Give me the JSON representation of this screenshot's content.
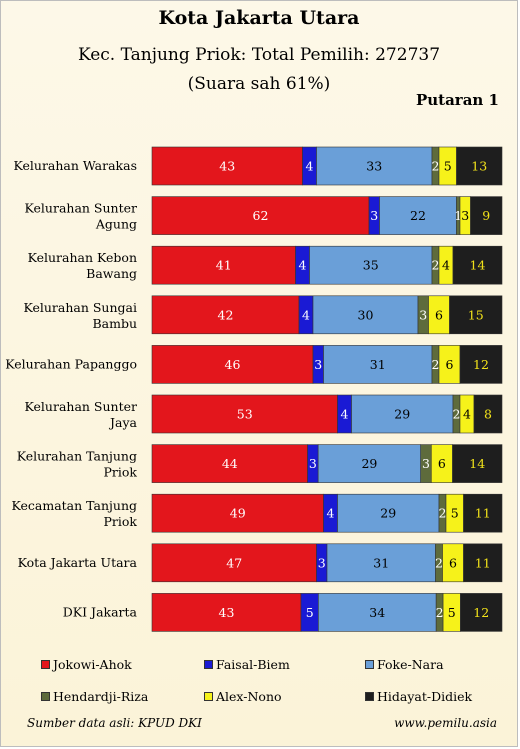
{
  "header": {
    "title": "Kota Jakarta Utara",
    "subtitle": "Kec. Tanjung Priok: Total Pemilih: 272737",
    "subtitle2": "(Suara sah 61%)",
    "round": "Putaran 1"
  },
  "footer": {
    "source": "Sumber data asli: KPUD DKI",
    "site": "www.pemilu.asia"
  },
  "chart_data": {
    "type": "bar",
    "orientation": "horizontal",
    "stacked": "percent",
    "categories": [
      "Kelurahan Warakas",
      "Kelurahan Sunter Agung",
      "Kelurahan Kebon Bawang",
      "Kelurahan Sungai Bambu",
      "Kelurahan Papanggo",
      "Kelurahan Sunter Jaya",
      "Kelurahan Tanjung Priok",
      "Kecamatan Tanjung Priok",
      "Kota Jakarta Utara",
      "DKI Jakarta"
    ],
    "series": [
      {
        "name": "Jokowi-Ahok",
        "color": "#e3161c",
        "label_color": "#ffffff",
        "values": [
          43,
          62,
          41,
          42,
          46,
          53,
          44,
          49,
          47,
          43
        ]
      },
      {
        "name": "Faisal-Biem",
        "color": "#1a1ad4",
        "label_color": "#ffffff",
        "values": [
          4,
          3,
          4,
          4,
          3,
          4,
          3,
          4,
          3,
          5
        ]
      },
      {
        "name": "Foke-Nara",
        "color": "#6a9fd8",
        "label_color": "#000000",
        "values": [
          33,
          22,
          35,
          30,
          31,
          29,
          29,
          29,
          31,
          34
        ]
      },
      {
        "name": "Hendardji-Riza",
        "color": "#5e6b3c",
        "label_color": "#ffffff",
        "values": [
          2,
          1,
          2,
          3,
          2,
          2,
          3,
          2,
          2,
          2
        ]
      },
      {
        "name": "Alex-Nono",
        "color": "#f6f21a",
        "label_color": "#000000",
        "values": [
          5,
          3,
          4,
          6,
          6,
          4,
          6,
          5,
          6,
          5
        ]
      },
      {
        "name": "Hidayat-Didiek",
        "color": "#1e1e1e",
        "label_color": "#f2e21a",
        "values": [
          13,
          9,
          14,
          15,
          12,
          8,
          14,
          11,
          11,
          12
        ]
      }
    ],
    "legend_position": "bottom",
    "grid": false
  }
}
